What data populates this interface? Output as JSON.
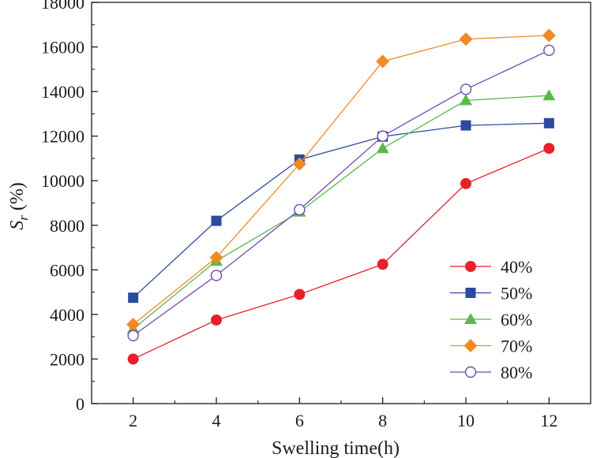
{
  "chart_data": {
    "type": "line",
    "title": "",
    "xlabel": "Swelling time(h)",
    "ylabel": {
      "main": "S",
      "subscript": "r",
      "unit": " (%)"
    },
    "x": [
      2,
      4,
      6,
      8,
      10,
      12
    ],
    "x_ticks": [
      "2",
      "4",
      "6",
      "8",
      "10",
      "12"
    ],
    "xlim": [
      1,
      13
    ],
    "ylim": [
      0,
      18000
    ],
    "y_ticks": [
      "0",
      "2000",
      "4000",
      "6000",
      "8000",
      "10000",
      "12000",
      "14000",
      "16000",
      "18000"
    ],
    "legend_position": "bottom-right",
    "series": [
      {
        "name": "40%",
        "marker": "circle-filled",
        "color": "#e8202a",
        "values": [
          2000,
          3750,
          4900,
          6250,
          9870,
          11450
        ]
      },
      {
        "name": "50%",
        "marker": "square-filled",
        "color": "#2c4a9e",
        "values": [
          4750,
          8200,
          10950,
          11980,
          12480,
          12580
        ]
      },
      {
        "name": "60%",
        "marker": "triangle-filled",
        "color": "#5cb84a",
        "values": [
          3350,
          6400,
          8600,
          11450,
          13600,
          13820
        ]
      },
      {
        "name": "70%",
        "marker": "diamond-filled",
        "color": "#f08a24",
        "values": [
          3550,
          6550,
          10750,
          15350,
          16350,
          16520
        ]
      },
      {
        "name": "80%",
        "marker": "circle-open",
        "color": "#6e4bb0",
        "values": [
          3050,
          5750,
          8700,
          12000,
          14100,
          15850
        ]
      }
    ]
  }
}
